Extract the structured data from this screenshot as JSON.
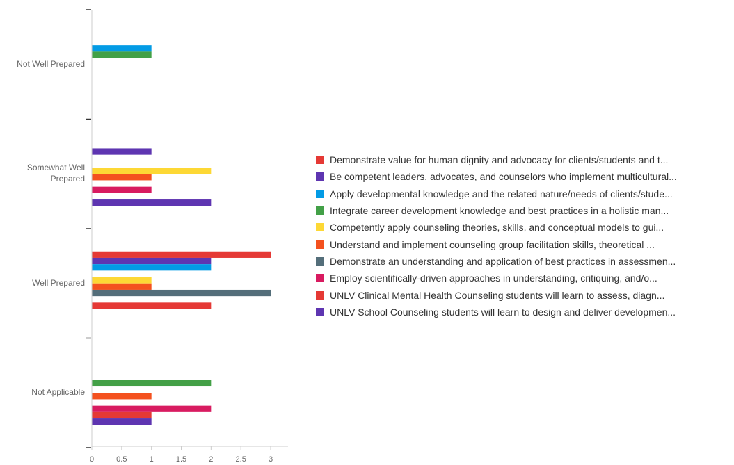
{
  "chart_data": {
    "type": "bar",
    "orientation": "horizontal",
    "categories": [
      "Not Well Prepared",
      "Somewhat Well Prepared",
      "Well Prepared",
      "Not Applicable"
    ],
    "category_labels": [
      [
        "Not Well Prepared"
      ],
      [
        "Somewhat Well",
        "Prepared"
      ],
      [
        "Well Prepared"
      ],
      [
        "Not Applicable"
      ]
    ],
    "xlim": [
      0,
      3
    ],
    "xticks": [
      "0",
      "0.5",
      "1",
      "1.5",
      "2",
      "2.5",
      "3"
    ],
    "legend_position": "right",
    "grid": false,
    "series": [
      {
        "name": "Demonstrate value for human dignity and advocacy for clients/students and t...",
        "color": "#e53935",
        "values": [
          0,
          0,
          3,
          0
        ]
      },
      {
        "name": "Be competent leaders, advocates, and counselors who implement multicultural...",
        "color": "#5e35b1",
        "values": [
          0,
          1,
          2,
          0
        ]
      },
      {
        "name": "Apply developmental knowledge and the related nature/needs of clients/stude...",
        "color": "#039be5",
        "values": [
          1,
          0,
          2,
          0
        ]
      },
      {
        "name": "Integrate career development knowledge and best practices in a holistic man...",
        "color": "#43a047",
        "values": [
          1,
          0,
          0,
          2
        ]
      },
      {
        "name": "Competently apply counseling theories, skills, and conceptual models to gui...",
        "color": "#fdd835",
        "values": [
          0,
          2,
          1,
          0
        ]
      },
      {
        "name": "Understand and implement counseling group facilitation skills, theoretical ...",
        "color": "#f4511e",
        "values": [
          0,
          1,
          1,
          1
        ]
      },
      {
        "name": "Demonstrate an understanding and application of best practices in assessmen...",
        "color": "#546e7a",
        "values": [
          0,
          0,
          3,
          0
        ]
      },
      {
        "name": "Employ scientifically-driven approaches in understanding, critiquing, and/o...",
        "color": "#d81b60",
        "values": [
          0,
          1,
          0,
          2
        ]
      },
      {
        "name": "UNLV Clinical Mental Health Counseling students will learn to assess, diagn...",
        "color": "#e53935",
        "values": [
          0,
          0,
          2,
          1
        ]
      },
      {
        "name": "UNLV School Counseling students will learn to design and deliver developmen...",
        "color": "#5e35b1",
        "values": [
          0,
          2,
          0,
          1
        ]
      }
    ]
  }
}
